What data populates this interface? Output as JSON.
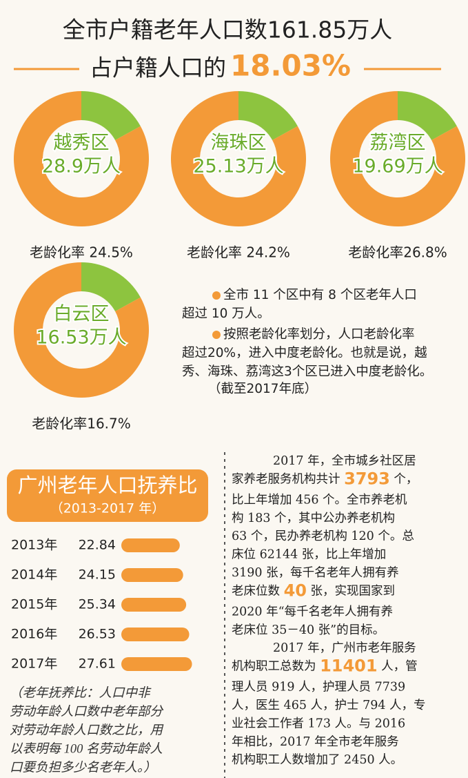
{
  "header": {
    "title": "全市户籍老年人口数161.85万人",
    "subtitle": "占户籍人口的",
    "highlight": "18.03%"
  },
  "chart_data": [
    {
      "type": "pie",
      "title": "越秀区",
      "subtitle": "28.9万人",
      "caption": "老龄化率 24.5%",
      "values": [
        17,
        83
      ],
      "colors": [
        "#8dc43f",
        "#f39a38"
      ]
    },
    {
      "type": "pie",
      "title": "海珠区",
      "subtitle": "25.13万人",
      "caption": "老龄化率 24.2%",
      "values": [
        17,
        83
      ],
      "colors": [
        "#8dc43f",
        "#f39a38"
      ]
    },
    {
      "type": "pie",
      "title": "荔湾区",
      "subtitle": "19.69万人",
      "caption": "老龄化率26.8%",
      "values": [
        17,
        83
      ],
      "colors": [
        "#8dc43f",
        "#f39a38"
      ]
    },
    {
      "type": "pie",
      "title": "白云区",
      "subtitle": "16.53万人",
      "caption": "老龄化率16.7%",
      "values": [
        17,
        83
      ],
      "colors": [
        "#8dc43f",
        "#f39a38"
      ]
    },
    {
      "type": "bar",
      "orientation": "horizontal",
      "title": "广州老年人口抚养比",
      "subtitle": "（2013-2017 年）",
      "categories": [
        "2013年",
        "2014年",
        "2015年",
        "2016年",
        "2017年"
      ],
      "values": [
        22.84,
        24.15,
        25.34,
        26.53,
        27.61
      ],
      "xlim": [
        0,
        28
      ],
      "color": "#f39a38",
      "note": [
        "（老年抚养比：人口中非",
        "劳动年龄人口数中老年部分",
        "对劳动年龄人口数之比，用",
        "以表明每 100 名劳动年龄人",
        "口要负担多少名老年人。）"
      ]
    }
  ],
  "notes": [
    [
      "全市 11 个区中有 8 个区老年人口",
      "超过 10 万人。"
    ],
    [
      "按照老龄化率划分，人口老龄化率",
      "超过20%，进入中度老龄化。也就是说，越",
      "秀、海珠、荔湾这3个区已进入中度老龄化。",
      "（截至2017年底）"
    ]
  ],
  "article": [
    [
      [
        "2017 年，全市城乡社区居"
      ],
      [
        "家养老服务机构共计 ",
        "3793",
        " 个，"
      ],
      [
        "比上年增加 456 个。全市养老机"
      ],
      [
        "构 183 个，其中公办养老机构"
      ],
      [
        "63 个，民办养老机构 120 个。总"
      ],
      [
        "床位 62144 张，比上年增加"
      ],
      [
        "3190 张，每千名老年人拥有养"
      ],
      [
        "老床位数 ",
        "40",
        " 张，实现国家到"
      ],
      [
        "2020 年“每千名老年人拥有养"
      ],
      [
        "老床位 35－40 张”的目标。"
      ]
    ],
    [
      [
        "2017 年，广州市老年服务"
      ],
      [
        "机构职工总数为 ",
        "11401",
        " 人，管"
      ],
      [
        "理人员 919 人，护理人员 7739"
      ],
      [
        "人，医生 465 人，护士 794 人，专"
      ],
      [
        "业社会工作者 173 人。与 2016"
      ],
      [
        "年相比，2017 年全市老年服务"
      ],
      [
        "机构职工人数增加了 2450 人。"
      ]
    ]
  ]
}
